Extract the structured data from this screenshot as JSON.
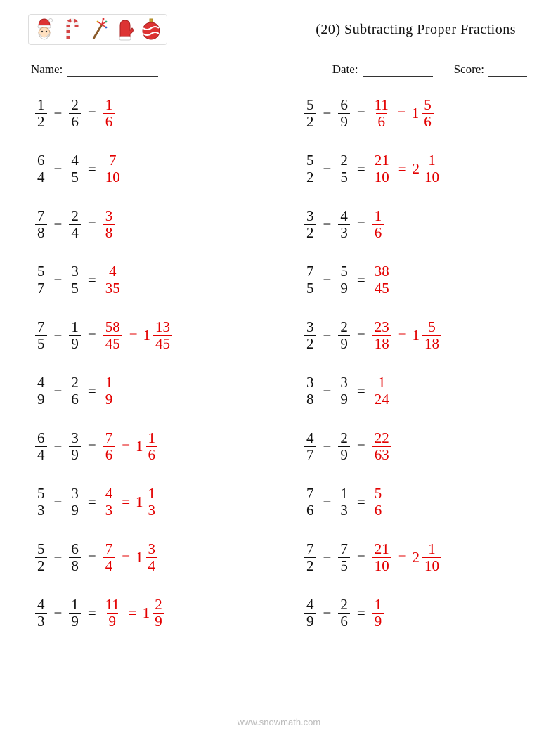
{
  "title": "(20) Subtracting Proper Fractions",
  "labels": {
    "name": "Name:",
    "date": "Date:",
    "score": "Score:"
  },
  "underlineWidths": {
    "name": 130,
    "date": 100,
    "score": 55
  },
  "colors": {
    "text": "#111111",
    "answer": "#e30000",
    "footer": "#bbbbbb",
    "iconBorder": "#dddddd"
  },
  "icons": [
    "santa",
    "candy-cane",
    "firework",
    "mitten",
    "ornament"
  ],
  "footer": "www.snowmath.com",
  "problems": [
    {
      "a": {
        "n": 1,
        "d": 2
      },
      "b": {
        "n": 2,
        "d": 6
      },
      "r": {
        "n": 1,
        "d": 6
      }
    },
    {
      "a": {
        "n": 5,
        "d": 2
      },
      "b": {
        "n": 6,
        "d": 9
      },
      "r": {
        "n": 11,
        "d": 6
      },
      "m": {
        "w": 1,
        "n": 5,
        "d": 6
      }
    },
    {
      "a": {
        "n": 6,
        "d": 4
      },
      "b": {
        "n": 4,
        "d": 5
      },
      "r": {
        "n": 7,
        "d": 10
      }
    },
    {
      "a": {
        "n": 5,
        "d": 2
      },
      "b": {
        "n": 2,
        "d": 5
      },
      "r": {
        "n": 21,
        "d": 10
      },
      "m": {
        "w": 2,
        "n": 1,
        "d": 10
      }
    },
    {
      "a": {
        "n": 7,
        "d": 8
      },
      "b": {
        "n": 2,
        "d": 4
      },
      "r": {
        "n": 3,
        "d": 8
      }
    },
    {
      "a": {
        "n": 3,
        "d": 2
      },
      "b": {
        "n": 4,
        "d": 3
      },
      "r": {
        "n": 1,
        "d": 6
      }
    },
    {
      "a": {
        "n": 5,
        "d": 7
      },
      "b": {
        "n": 3,
        "d": 5
      },
      "r": {
        "n": 4,
        "d": 35
      }
    },
    {
      "a": {
        "n": 7,
        "d": 5
      },
      "b": {
        "n": 5,
        "d": 9
      },
      "r": {
        "n": 38,
        "d": 45
      }
    },
    {
      "a": {
        "n": 7,
        "d": 5
      },
      "b": {
        "n": 1,
        "d": 9
      },
      "r": {
        "n": 58,
        "d": 45
      },
      "m": {
        "w": 1,
        "n": 13,
        "d": 45
      }
    },
    {
      "a": {
        "n": 3,
        "d": 2
      },
      "b": {
        "n": 2,
        "d": 9
      },
      "r": {
        "n": 23,
        "d": 18
      },
      "m": {
        "w": 1,
        "n": 5,
        "d": 18
      }
    },
    {
      "a": {
        "n": 4,
        "d": 9
      },
      "b": {
        "n": 2,
        "d": 6
      },
      "r": {
        "n": 1,
        "d": 9
      }
    },
    {
      "a": {
        "n": 3,
        "d": 8
      },
      "b": {
        "n": 3,
        "d": 9
      },
      "r": {
        "n": 1,
        "d": 24
      }
    },
    {
      "a": {
        "n": 6,
        "d": 4
      },
      "b": {
        "n": 3,
        "d": 9
      },
      "r": {
        "n": 7,
        "d": 6
      },
      "m": {
        "w": 1,
        "n": 1,
        "d": 6
      }
    },
    {
      "a": {
        "n": 4,
        "d": 7
      },
      "b": {
        "n": 2,
        "d": 9
      },
      "r": {
        "n": 22,
        "d": 63
      }
    },
    {
      "a": {
        "n": 5,
        "d": 3
      },
      "b": {
        "n": 3,
        "d": 9
      },
      "r": {
        "n": 4,
        "d": 3
      },
      "m": {
        "w": 1,
        "n": 1,
        "d": 3
      }
    },
    {
      "a": {
        "n": 7,
        "d": 6
      },
      "b": {
        "n": 1,
        "d": 3
      },
      "r": {
        "n": 5,
        "d": 6
      }
    },
    {
      "a": {
        "n": 5,
        "d": 2
      },
      "b": {
        "n": 6,
        "d": 8
      },
      "r": {
        "n": 7,
        "d": 4
      },
      "m": {
        "w": 1,
        "n": 3,
        "d": 4
      }
    },
    {
      "a": {
        "n": 7,
        "d": 2
      },
      "b": {
        "n": 7,
        "d": 5
      },
      "r": {
        "n": 21,
        "d": 10
      },
      "m": {
        "w": 2,
        "n": 1,
        "d": 10
      }
    },
    {
      "a": {
        "n": 4,
        "d": 3
      },
      "b": {
        "n": 1,
        "d": 9
      },
      "r": {
        "n": 11,
        "d": 9
      },
      "m": {
        "w": 1,
        "n": 2,
        "d": 9
      }
    },
    {
      "a": {
        "n": 4,
        "d": 9
      },
      "b": {
        "n": 2,
        "d": 6
      },
      "r": {
        "n": 1,
        "d": 9
      }
    }
  ]
}
